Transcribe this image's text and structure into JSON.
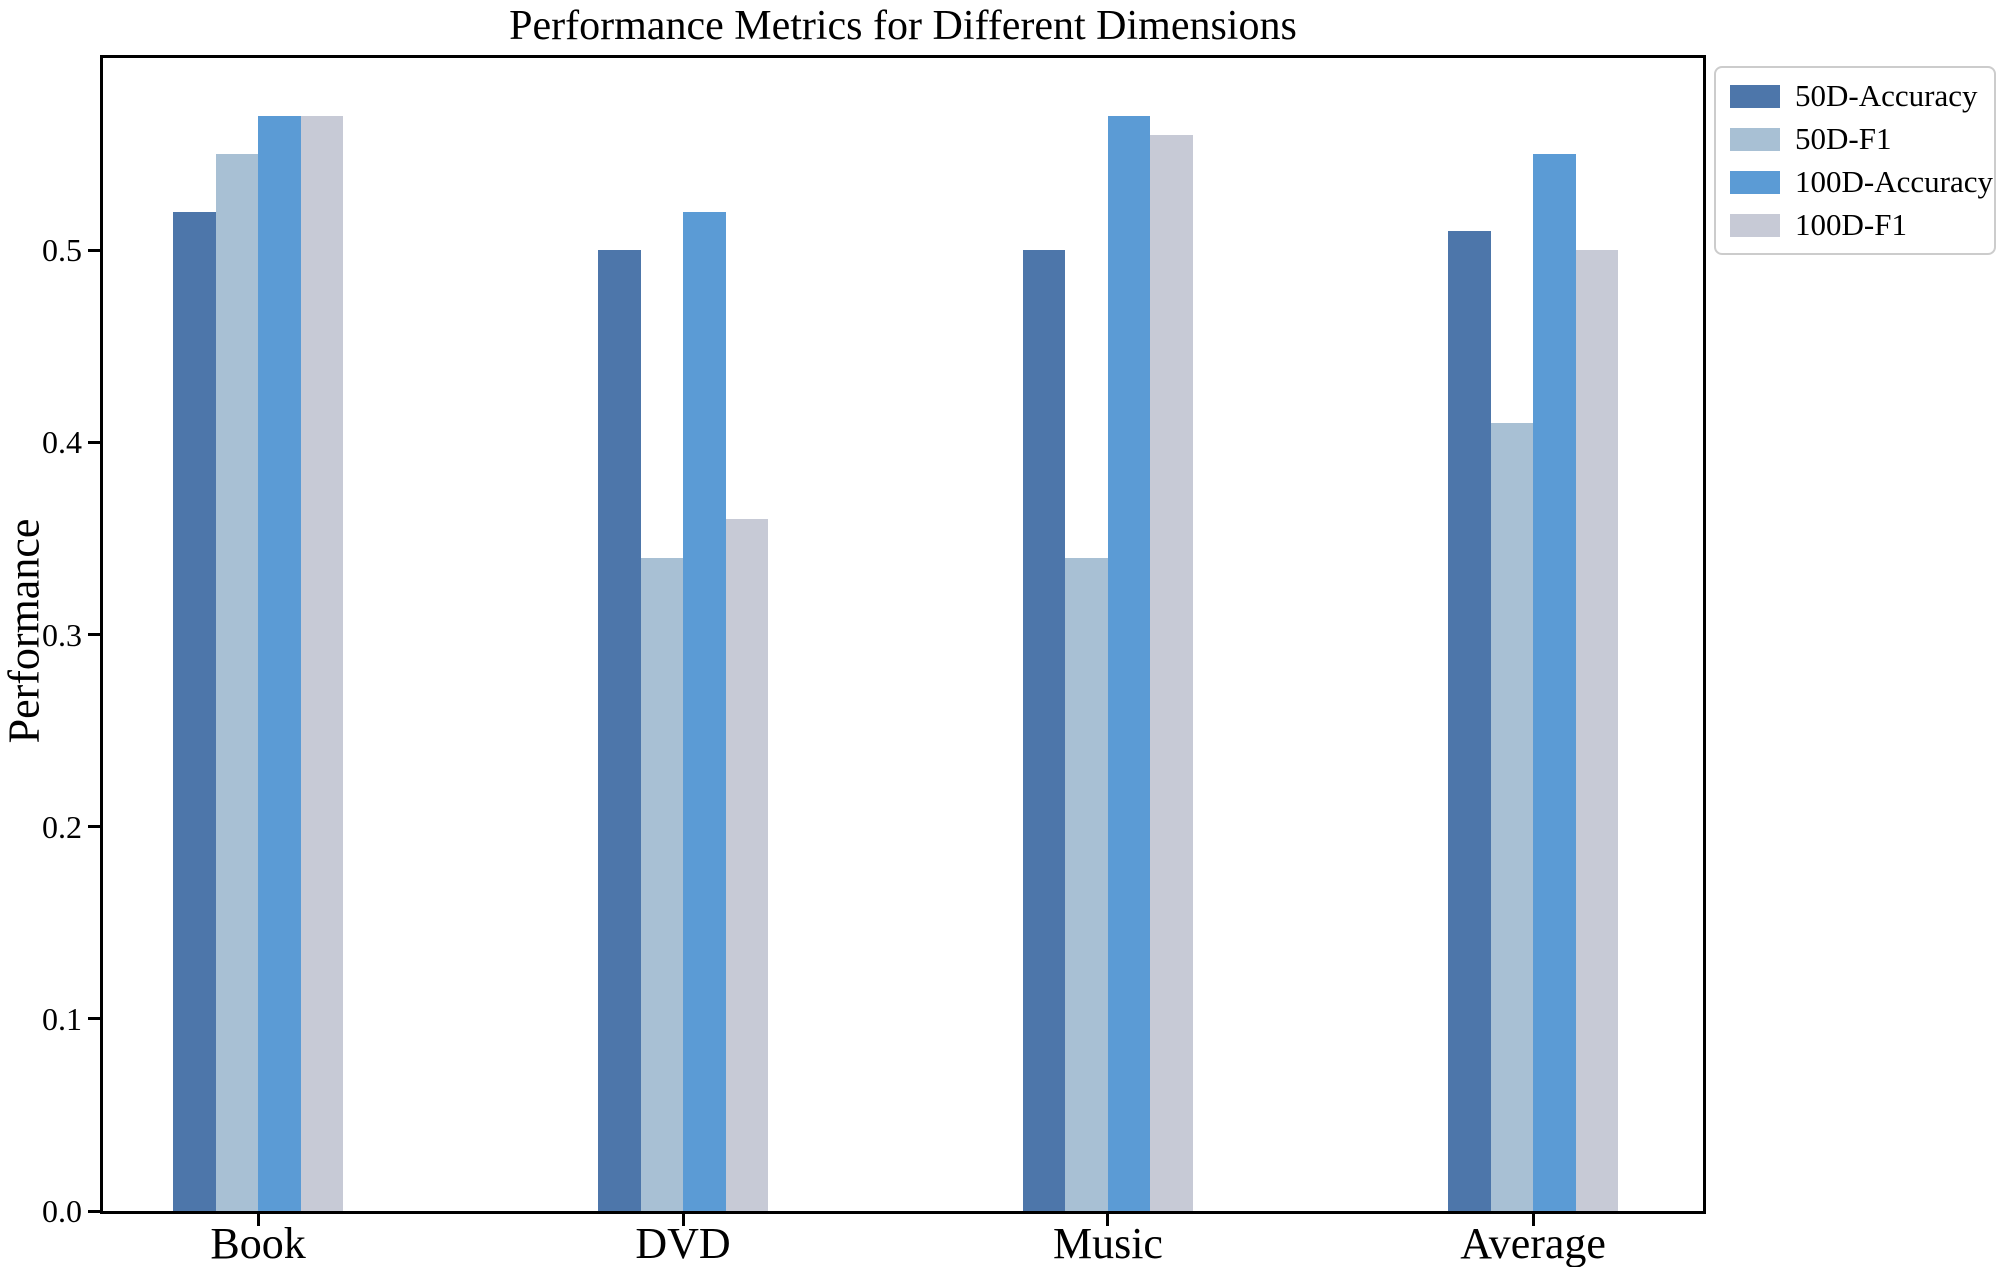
{
  "chart_data": {
    "type": "bar",
    "title": "Performance Metrics for Different Dimensions",
    "xlabel": "",
    "ylabel": "Performance",
    "categories": [
      "Book",
      "DVD",
      "Music",
      "Average"
    ],
    "series": [
      {
        "name": "50D-Accuracy",
        "color": "#4D76AA",
        "values": [
          0.52,
          0.5,
          0.5,
          0.51
        ]
      },
      {
        "name": "50D-F1",
        "color": "#A8C0D4",
        "values": [
          0.55,
          0.34,
          0.34,
          0.41
        ]
      },
      {
        "name": "100D-Accuracy",
        "color": "#5B9BD5",
        "values": [
          0.57,
          0.52,
          0.57,
          0.55
        ]
      },
      {
        "name": "100D-F1",
        "color": "#C7CAD6",
        "values": [
          0.57,
          0.36,
          0.56,
          0.5
        ]
      }
    ],
    "ylim": [
      0,
      0.6
    ],
    "ytick_labels": [
      "0.0",
      "0.1",
      "0.2",
      "0.3",
      "0.4",
      "0.5"
    ],
    "grid": false,
    "legend_position": "upper right, outside axes",
    "axis_color": "#000000",
    "background_color": "#ffffff"
  }
}
